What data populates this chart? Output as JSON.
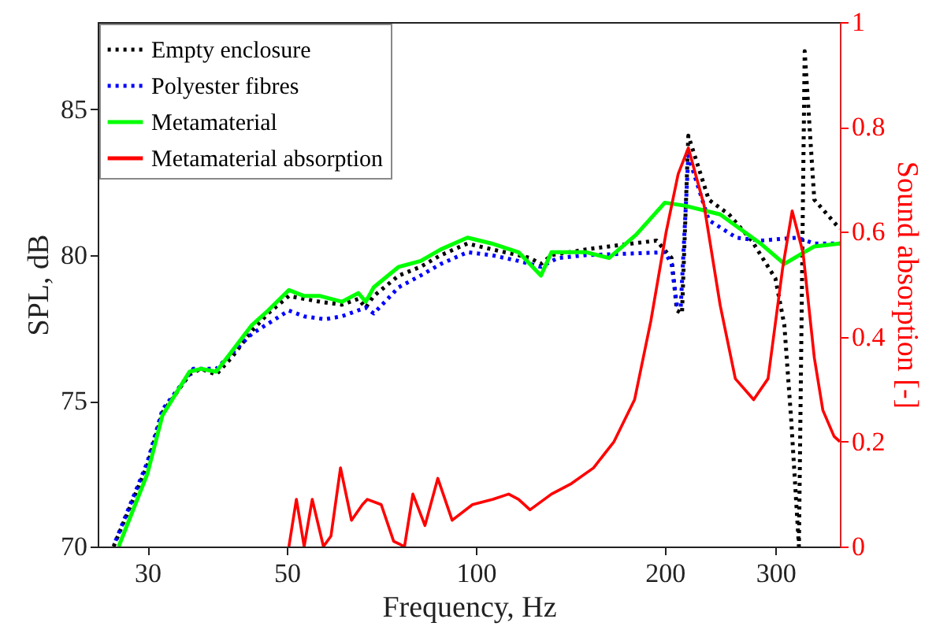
{
  "chart_data": {
    "type": "line",
    "xlabel": "Frequency, Hz",
    "ylabel": "SPL, dB",
    "y2label": "Sound absorption [-]",
    "log": "x",
    "xlim": [
      25,
      380
    ],
    "xticks": [
      30,
      50,
      100,
      200,
      300
    ],
    "ylim": [
      70,
      88
    ],
    "yticks": [
      70,
      75,
      80,
      85
    ],
    "y2lim": [
      0,
      1
    ],
    "y2ticks": [
      0,
      0.2,
      0.4,
      0.6,
      0.8,
      1
    ],
    "grid": false,
    "legend": "top left",
    "series": [
      {
        "name": "Empty enclosure",
        "color": "#000000",
        "line_style": "dotted",
        "x": [
          26.5,
          30,
          31.7,
          35,
          36.5,
          38.6,
          40.9,
          44,
          46.7,
          50.4,
          53.3,
          56.5,
          61.2,
          65,
          66.8,
          68.8,
          75.4,
          81.7,
          88,
          97,
          106,
          117,
          122,
          127,
          132,
          150,
          163,
          194,
          205,
          209,
          213,
          218,
          235,
          253,
          275,
          300,
          310,
          318,
          327,
          334,
          346,
          380
        ],
        "values": [
          70,
          72.8,
          74.6,
          75.9,
          76.1,
          75.9,
          76.5,
          77.4,
          78.0,
          78.6,
          78.5,
          78.4,
          78.3,
          78.5,
          78.2,
          78.6,
          79.3,
          79.6,
          80.0,
          80.4,
          80.2,
          80.0,
          79.9,
          79.7,
          80.0,
          80.2,
          80.3,
          80.5,
          79.9,
          78.1,
          78.0,
          84.1,
          81.9,
          81.4,
          80.5,
          79.2,
          77.6,
          74.3,
          70,
          87.0,
          81.9,
          80.9
        ]
      },
      {
        "name": "Polyester fibres",
        "color": "#0000ff",
        "line_style": "dotted",
        "x": [
          26.7,
          30,
          31.7,
          35.5,
          38.6,
          44,
          50.4,
          53.3,
          57.5,
          61.2,
          66.8,
          68.8,
          75.4,
          81.7,
          88,
          97,
          106,
          117,
          127,
          135,
          150,
          200,
          205,
          209,
          212,
          218,
          235,
          260,
          284,
          325,
          346,
          380
        ],
        "values": [
          70.2,
          72.9,
          74.7,
          76.1,
          76.1,
          77.3,
          78.1,
          77.9,
          77.8,
          77.9,
          78.2,
          78.0,
          78.9,
          79.3,
          79.7,
          80.1,
          80.0,
          79.8,
          79.6,
          79.9,
          80.0,
          80.1,
          79.7,
          78.3,
          78.2,
          83.4,
          81.2,
          80.6,
          80.5,
          80.6,
          80.4,
          80.4
        ]
      },
      {
        "name": "Metamaterial",
        "color": "#00ff00",
        "line_style": "solid",
        "x": [
          27,
          30,
          31.7,
          35,
          36.5,
          38.6,
          40.9,
          44,
          46.7,
          50.4,
          53.3,
          56.5,
          61.2,
          65,
          66.8,
          68.8,
          75.4,
          81.7,
          88,
          97,
          106,
          117,
          127,
          132,
          150,
          163,
          180,
          200,
          215,
          245,
          284,
          310,
          346,
          380
        ],
        "values": [
          70,
          72.5,
          74.5,
          76.0,
          76.1,
          76.0,
          76.7,
          77.6,
          78.1,
          78.8,
          78.6,
          78.6,
          78.4,
          78.7,
          78.4,
          78.9,
          79.6,
          79.8,
          80.2,
          80.6,
          80.4,
          80.1,
          79.3,
          80.1,
          80.1,
          79.9,
          80.7,
          81.8,
          81.7,
          81.4,
          80.4,
          79.7,
          80.3,
          80.4
        ]
      },
      {
        "name": "Metamaterial absorption",
        "color": "#ff0000",
        "line_style": "solid",
        "axis": "y2",
        "x": [
          50.4,
          51.8,
          53.3,
          54.9,
          57.2,
          58.8,
          60.9,
          63.4,
          66,
          67.2,
          70.7,
          74,
          77,
          79.4,
          83,
          87,
          91.7,
          98.8,
          106.5,
          112.8,
          117,
          122,
          132,
          142,
          154,
          166,
          179,
          190,
          201,
          210,
          218,
          231,
          245,
          259,
          277,
          292,
          308,
          319,
          332,
          346,
          357,
          372,
          380
        ],
        "values": [
          0,
          0.09,
          0,
          0.09,
          0,
          0.02,
          0.15,
          0.05,
          0.08,
          0.09,
          0.08,
          0.01,
          0,
          0.1,
          0.04,
          0.13,
          0.05,
          0.08,
          0.09,
          0.1,
          0.09,
          0.07,
          0.1,
          0.12,
          0.15,
          0.2,
          0.28,
          0.43,
          0.6,
          0.71,
          0.76,
          0.65,
          0.46,
          0.32,
          0.28,
          0.32,
          0.53,
          0.64,
          0.56,
          0.36,
          0.26,
          0.21,
          0.2
        ]
      }
    ]
  }
}
